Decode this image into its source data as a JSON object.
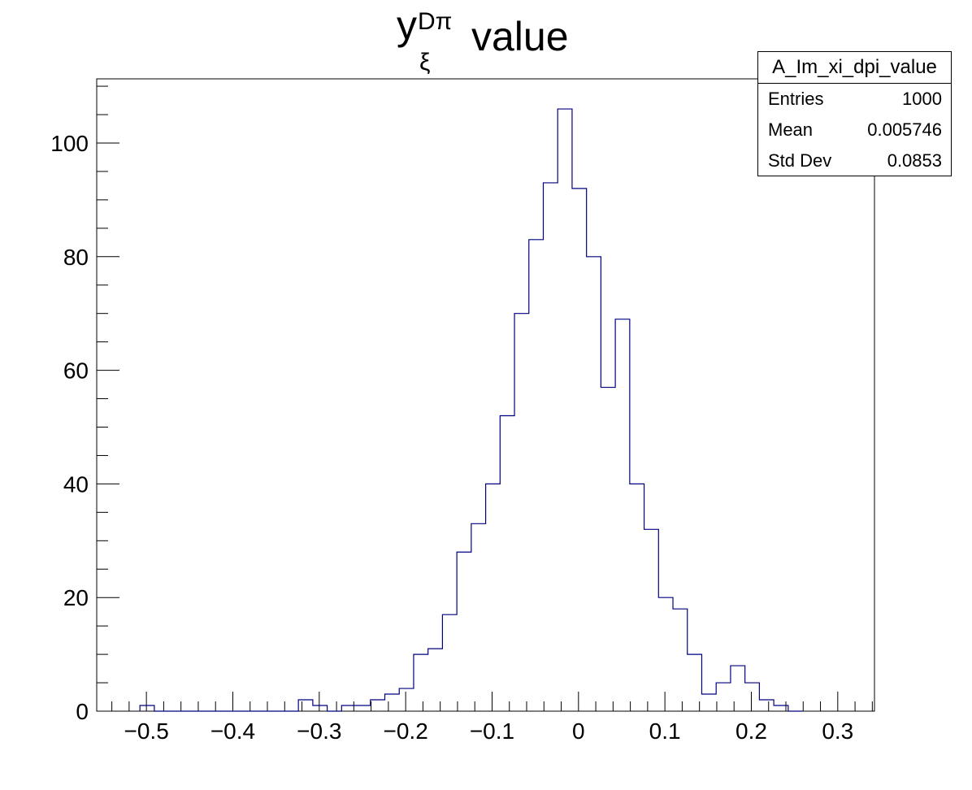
{
  "title": {
    "main": "y",
    "superscript": "Dπ",
    "subscript": "ξ",
    "rest": "value"
  },
  "stats_box": {
    "name": "A_Im_xi_dpi_value",
    "rows": [
      {
        "label": "Entries",
        "value": "1000"
      },
      {
        "label": "Mean",
        "value": "0.005746"
      },
      {
        "label": "Std Dev",
        "value": "0.0853"
      }
    ]
  },
  "colors": {
    "histogram_line": "#000080",
    "axis": "#000000",
    "background": "#ffffff"
  },
  "chart_data": {
    "type": "bar",
    "style": "step-histogram",
    "xlim": [
      -0.5575,
      0.3425
    ],
    "ylim": [
      0,
      111.3
    ],
    "xticks": [
      -0.5,
      -0.4,
      -0.3,
      -0.2,
      -0.1,
      0,
      0.1,
      0.2,
      0.3
    ],
    "xtick_labels": [
      "−0.5",
      "−0.4",
      "−0.3",
      "−0.2",
      "−0.1",
      "0",
      "0.1",
      "0.2",
      "0.3"
    ],
    "yticks": [
      0,
      20,
      40,
      60,
      80,
      100
    ],
    "ytick_labels": [
      "0",
      "20",
      "40",
      "60",
      "80",
      "100"
    ],
    "bin_edges_start": -0.5075,
    "bin_width": 0.01667,
    "values": [
      1,
      0,
      0,
      0,
      0,
      0,
      0,
      0,
      0,
      0,
      0,
      2,
      1,
      0,
      1,
      1,
      2,
      3,
      4,
      10,
      11,
      17,
      28,
      33,
      40,
      52,
      70,
      83,
      93,
      106,
      92,
      80,
      57,
      69,
      40,
      32,
      20,
      18,
      10,
      3,
      5,
      8,
      5,
      2,
      1,
      0
    ]
  }
}
